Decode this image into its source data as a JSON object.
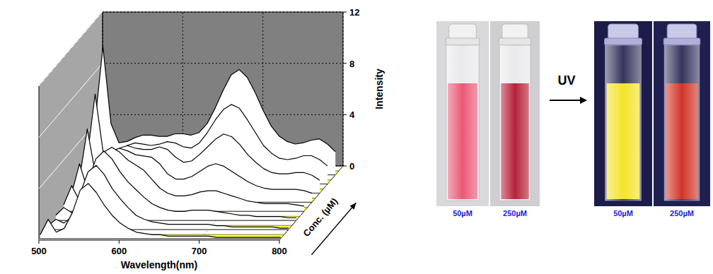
{
  "chart_data": {
    "type": "waterfall",
    "x_label": "Wavelength(nm)",
    "y_label": "Intensity",
    "z_label": "Conc. (µM)",
    "x": [
      500,
      510,
      520,
      530,
      540,
      550,
      560,
      570,
      580,
      590,
      600,
      610,
      620,
      630,
      640,
      650,
      660,
      670,
      680,
      690,
      700,
      710,
      720,
      730,
      740,
      750,
      760,
      770,
      780,
      790,
      800
    ],
    "xlim": [
      500,
      800
    ],
    "xticks": [
      500,
      600,
      700,
      800
    ],
    "ylim": [
      0,
      12
    ],
    "yticks": [
      0,
      4,
      8,
      12
    ],
    "grid": true,
    "color": "#ffffff",
    "series": [
      {
        "values": [
          0.3,
          1.5,
          0.5,
          0.8,
          2.0,
          3.8,
          4.3,
          3.6,
          2.6,
          1.8,
          1.2,
          0.8,
          0.5,
          0.4,
          0.3,
          0.3,
          0.2,
          0.2,
          0.2,
          0.2,
          0.2,
          0.2,
          0.1,
          0.1,
          0.1,
          0.1,
          0.1,
          0.1,
          0.1,
          0.1,
          0.1
        ]
      },
      {
        "values": [
          0.3,
          0.8,
          0.5,
          1.0,
          2.8,
          4.5,
          5.0,
          4.3,
          3.2,
          2.4,
          1.7,
          1.1,
          0.8,
          0.6,
          0.5,
          0.4,
          0.4,
          0.4,
          0.4,
          0.4,
          0.4,
          0.3,
          0.3,
          0.2,
          0.2,
          0.2,
          0.2,
          0.2,
          0.2,
          0.1,
          0.1
        ]
      },
      {
        "values": [
          0.4,
          1.0,
          0.6,
          1.2,
          3.0,
          4.8,
          5.4,
          4.8,
          3.8,
          3.0,
          2.4,
          1.8,
          1.3,
          1.0,
          0.8,
          0.7,
          0.7,
          0.8,
          0.8,
          0.8,
          0.7,
          0.6,
          0.5,
          0.4,
          0.4,
          0.3,
          0.3,
          0.3,
          0.3,
          0.2,
          0.2
        ]
      },
      {
        "values": [
          0.5,
          2.0,
          0.8,
          1.3,
          3.0,
          4.6,
          5.0,
          4.6,
          4.0,
          3.6,
          3.2,
          2.5,
          1.8,
          1.4,
          1.2,
          1.2,
          1.3,
          1.5,
          1.6,
          1.6,
          1.4,
          1.2,
          1.0,
          0.8,
          0.7,
          0.6,
          0.6,
          0.6,
          0.6,
          0.5,
          0.4
        ]
      },
      {
        "values": [
          0.6,
          3.0,
          1.0,
          1.4,
          2.8,
          4.0,
          4.2,
          4.0,
          3.7,
          3.6,
          3.5,
          3.0,
          2.2,
          1.8,
          1.8,
          2.0,
          2.4,
          2.8,
          3.0,
          2.8,
          2.4,
          2.0,
          1.6,
          1.3,
          1.1,
          1.0,
          1.0,
          1.0,
          1.0,
          0.9,
          0.7
        ]
      },
      {
        "values": [
          1.0,
          5.0,
          1.5,
          1.6,
          2.6,
          3.5,
          3.7,
          3.5,
          3.4,
          3.4,
          3.6,
          3.4,
          2.8,
          2.4,
          2.5,
          3.0,
          3.6,
          4.2,
          4.6,
          4.4,
          3.8,
          3.0,
          2.4,
          1.9,
          1.6,
          1.5,
          1.5,
          1.6,
          1.6,
          1.4,
          1.0
        ]
      },
      {
        "values": [
          2.0,
          7.0,
          2.5,
          2.0,
          2.5,
          3.0,
          3.2,
          3.1,
          3.0,
          3.1,
          3.3,
          3.2,
          2.9,
          2.8,
          3.2,
          4.0,
          5.0,
          5.8,
          6.2,
          5.9,
          5.0,
          4.0,
          3.0,
          2.4,
          2.0,
          1.9,
          2.0,
          2.2,
          2.2,
          1.9,
          1.4
        ]
      },
      {
        "values": [
          4.0,
          10.0,
          4.0,
          2.5,
          2.6,
          2.9,
          3.1,
          3.1,
          3.0,
          3.0,
          3.2,
          3.2,
          3.1,
          3.3,
          4.0,
          5.2,
          6.6,
          7.8,
          8.2,
          7.6,
          6.4,
          5.0,
          3.8,
          3.0,
          2.6,
          2.4,
          2.5,
          2.7,
          2.8,
          2.4,
          1.8
        ]
      }
    ]
  },
  "photos": {
    "before": {
      "labels": [
        "50µM",
        "250µM"
      ],
      "colors": [
        "#e9506f",
        "#b3162e"
      ]
    },
    "arrow_label": "UV",
    "after": {
      "labels": [
        "50µM",
        "250µM"
      ],
      "colors": [
        "#f3e21e",
        "#cf2a1c"
      ]
    }
  }
}
